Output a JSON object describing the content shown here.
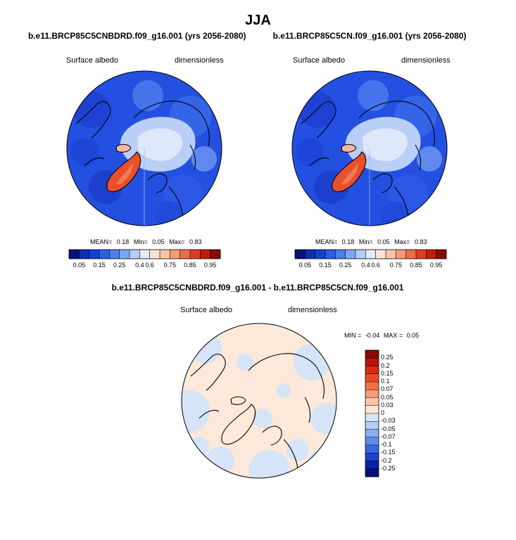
{
  "figure": {
    "title": "JJA"
  },
  "chart_data": [
    {
      "type": "heatmap",
      "title": "b.e11.BRCP85C5CNBDRD.f09_g16.001 (yrs 2056-2080)",
      "variable": "Surface albedo",
      "units": "dimensionless",
      "projection": "north polar stereographic",
      "stats": {
        "mean_label": "MEAN=",
        "mean": "0.18",
        "min_label": "Min=",
        "min": "0.05",
        "max_label": "Max=",
        "max": "0.83"
      },
      "colorbar": {
        "orientation": "horizontal",
        "ticks": [
          "0.05",
          "0.15",
          "0.25",
          "0.4",
          "0.6",
          "0.75",
          "0.85",
          "0.95"
        ],
        "colors": [
          "#08127a",
          "#0d2db8",
          "#1340d8",
          "#2a5ee8",
          "#4a7ef0",
          "#7ea6f5",
          "#b4cdf8",
          "#e2ecfb",
          "#fde3d3",
          "#fbc2a8",
          "#f69b7a",
          "#ef6a46",
          "#e23c1e",
          "#c51a0b",
          "#8a0a04"
        ]
      }
    },
    {
      "type": "heatmap",
      "title": "b.e11.BRCP85C5CN.f09_g16.001 (yrs 2056-2080)",
      "variable": "Surface albedo",
      "units": "dimensionless",
      "projection": "north polar stereographic",
      "stats": {
        "mean_label": "MEAN=",
        "mean": "0.18",
        "min_label": "Min=",
        "min": "0.05",
        "max_label": "Max=",
        "max": "0.83"
      },
      "colorbar": {
        "orientation": "horizontal",
        "ticks": [
          "0.05",
          "0.15",
          "0.25",
          "0.4",
          "0.6",
          "0.75",
          "0.85",
          "0.95"
        ],
        "colors": [
          "#08127a",
          "#0d2db8",
          "#1340d8",
          "#2a5ee8",
          "#4a7ef0",
          "#7ea6f5",
          "#b4cdf8",
          "#e2ecfb",
          "#fde3d3",
          "#fbc2a8",
          "#f69b7a",
          "#ef6a46",
          "#e23c1e",
          "#c51a0b",
          "#8a0a04"
        ]
      }
    },
    {
      "type": "heatmap",
      "title": "b.e11.BRCP85C5CNBDRD.f09_g16.001 - b.e11.BRCP85C5CN.f09_g16.001",
      "variable": "Surface albedo",
      "units": "dimensionless",
      "projection": "north polar stereographic",
      "stats": {
        "min_label": "MIN =",
        "min": "-0.04",
        "max_label": "MAX =",
        "max": "0.05"
      },
      "colorbar": {
        "orientation": "vertical",
        "ticks": [
          "0.25",
          "0.2",
          "0.15",
          "0.1",
          "0.07",
          "0.05",
          "0.03",
          "0",
          "-0.03",
          "-0.05",
          "-0.07",
          "-0.1",
          "-0.15",
          "-0.2",
          "-0.25"
        ],
        "colors": [
          "#8a0a04",
          "#b81408",
          "#d72a10",
          "#ec4a22",
          "#f47044",
          "#f99a76",
          "#fcc4a8",
          "#fde6d6",
          "#d6e6fa",
          "#b4ccf6",
          "#8aaef0",
          "#5e8aea",
          "#3a66e2",
          "#1c40d0",
          "#0a22a8",
          "#06107a"
        ]
      }
    }
  ]
}
